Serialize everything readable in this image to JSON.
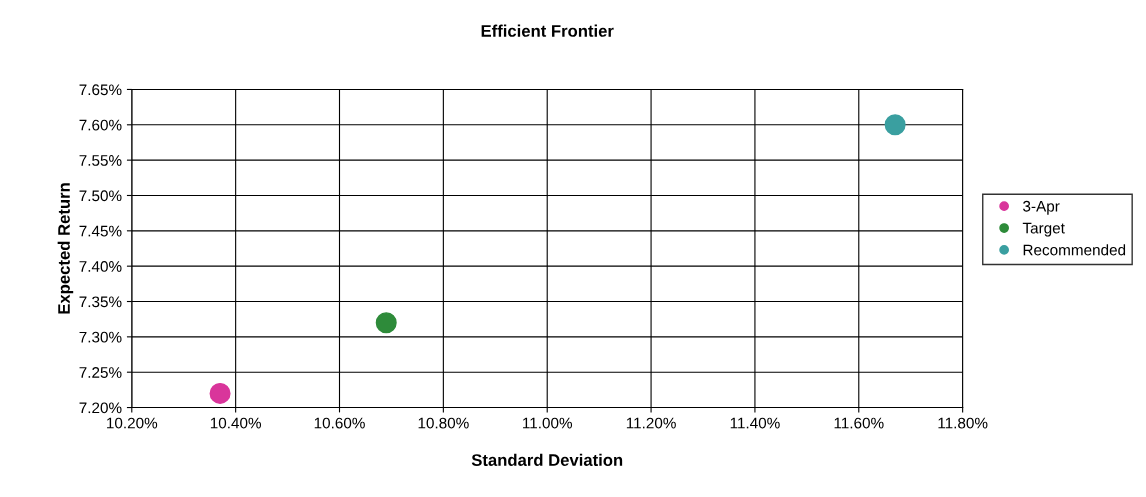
{
  "chart_data": {
    "type": "scatter",
    "title": "Efficient Frontier",
    "xlabel": "Standard Deviation",
    "ylabel": "Expected Return",
    "series": [
      {
        "name": "3-Apr",
        "color": "#d9359b",
        "x": [
          10.37
        ],
        "values": [
          7.22
        ]
      },
      {
        "name": "Target",
        "color": "#2e8b3a",
        "x": [
          10.69
        ],
        "values": [
          7.32
        ]
      },
      {
        "name": "Recommended",
        "color": "#3a9fa0",
        "x": [
          11.67
        ],
        "values": [
          7.6
        ]
      }
    ],
    "xlim": [
      10.2,
      11.8
    ],
    "xticks": [
      {
        "value": 10.2,
        "label": "10.20%"
      },
      {
        "value": 10.4,
        "label": "10.40%"
      },
      {
        "value": 10.6,
        "label": "10.60%"
      },
      {
        "value": 10.8,
        "label": "10.80%"
      },
      {
        "value": 11.0,
        "label": "11.00%"
      },
      {
        "value": 11.2,
        "label": "11.20%"
      },
      {
        "value": 11.4,
        "label": "11.40%"
      },
      {
        "value": 11.6,
        "label": "11.60%"
      },
      {
        "value": 11.8,
        "label": "11.80%"
      }
    ],
    "ylim": [
      7.2,
      7.65
    ],
    "yticks": [
      {
        "value": 7.2,
        "label": "7.20%"
      },
      {
        "value": 7.25,
        "label": "7.25%"
      },
      {
        "value": 7.3,
        "label": "7.30%"
      },
      {
        "value": 7.35,
        "label": "7.35%"
      },
      {
        "value": 7.4,
        "label": "7.40%"
      },
      {
        "value": 7.45,
        "label": "7.45%"
      },
      {
        "value": 7.5,
        "label": "7.50%"
      },
      {
        "value": 7.55,
        "label": "7.55%"
      },
      {
        "value": 7.6,
        "label": "7.60%"
      },
      {
        "value": 7.65,
        "label": "7.65%"
      }
    ],
    "grid": true,
    "legend": "right",
    "marker": "circle"
  }
}
